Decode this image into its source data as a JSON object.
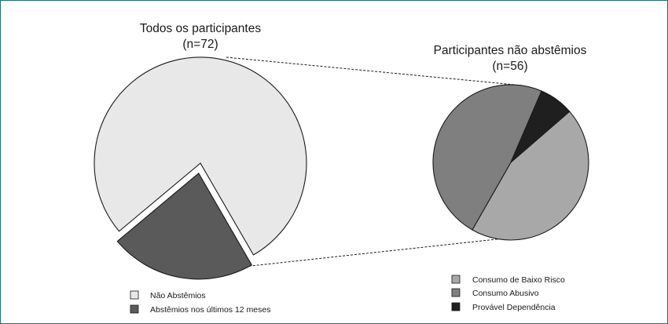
{
  "chart_data": [
    {
      "type": "pie",
      "title": "Todos os participantes",
      "subtitle": "(n=72)",
      "total": 72,
      "slices": [
        {
          "label": "Não Abstêmios",
          "value": 56,
          "color": "#e8e8e8",
          "exploded": false
        },
        {
          "label": "Abstêmios nos últimos 12 meses",
          "value": 16,
          "color": "#5a5a5a",
          "exploded": true
        }
      ]
    },
    {
      "type": "pie",
      "title": "Participantes não abstêmios",
      "subtitle": "(n=56)",
      "total": 56,
      "slices": [
        {
          "label": "Consumo de Baixo Risco",
          "value": 25,
          "color": "#a8a8a8"
        },
        {
          "label": "Consumo Abusivo",
          "value": 27,
          "color": "#7f7f7f"
        },
        {
          "label": "Provável Dependência",
          "value": 4,
          "color": "#1f1f1f"
        }
      ]
    }
  ]
}
